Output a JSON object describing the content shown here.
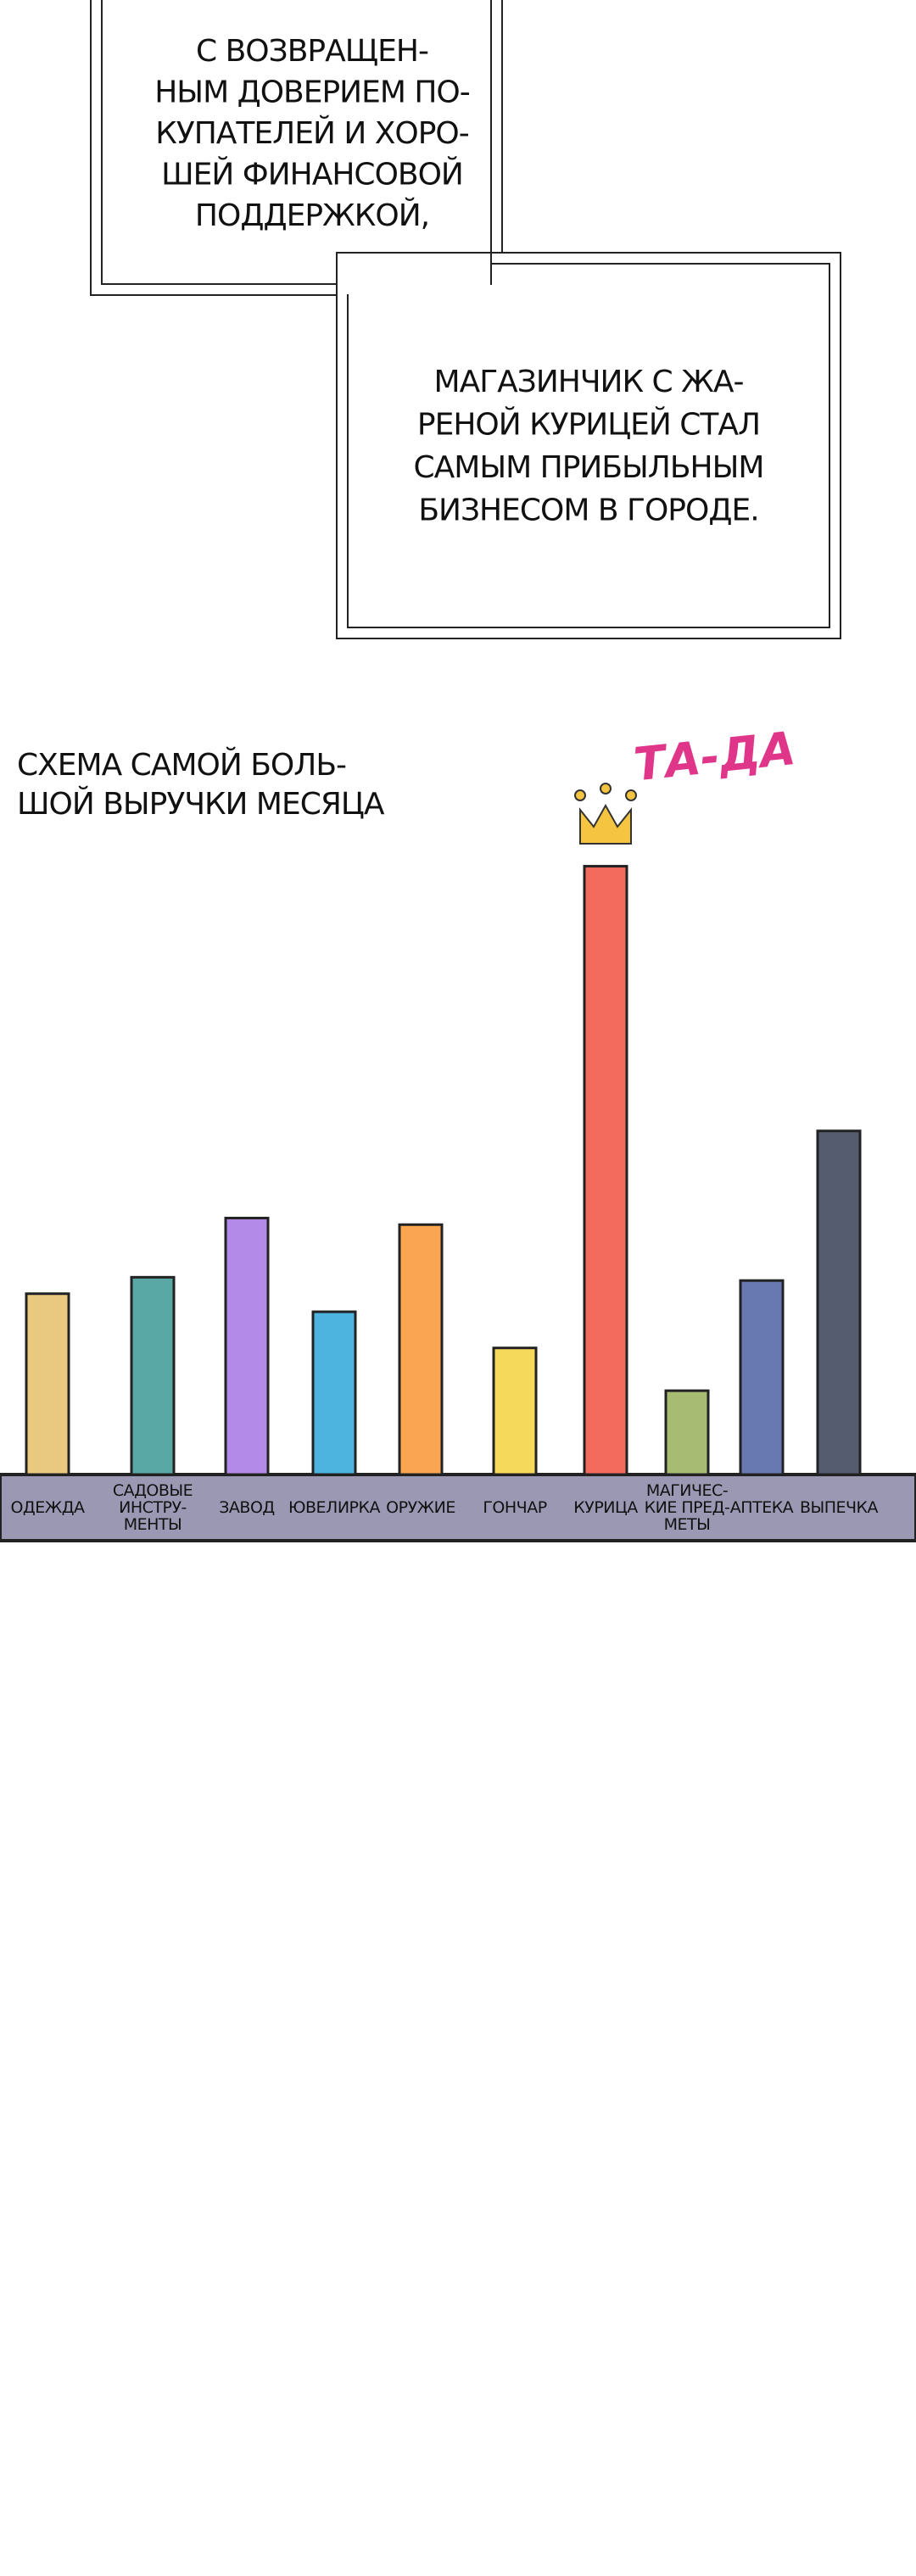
{
  "narration": {
    "box1": [
      "С ВОЗВРАЩЕН-",
      "НЫМ ДОВЕРИЕМ ПО-",
      "КУПАТЕЛЕЙ И ХОРО-",
      "ШЕЙ ФИНАНСОВОЙ",
      "ПОДДЕРЖКОЙ,"
    ],
    "box2": [
      "МАГАЗИНЧИК С ЖА-",
      "РЕНОЙ КУРИЦЕЙ СТАЛ",
      "САМЫМ ПРИБЫЛЬНЫМ",
      "БИЗНЕСОМ В ГОРОДЕ."
    ]
  },
  "sfx": "ТА-ДА",
  "chart_data": {
    "type": "bar",
    "title": [
      "СХЕМА САМОЙ БОЛЬ-",
      "ШОЙ ВЫРУЧКИ МЕСЯЦА"
    ],
    "categories": [
      "ОДЕЖДА",
      "САДОВЫЕ\nИНСТРУ-\nМЕНТЫ",
      "ЗАВОД",
      "ЮВЕЛИРКА",
      "ОРУЖИЕ",
      "ГОНЧАР",
      "КУРИЦА",
      "МАГИЧЕС-\nКИЕ ПРЕД-\nМЕТЫ",
      "АПТЕКА",
      "ВЫПЕЧКА"
    ],
    "values": [
      110,
      120,
      156,
      99,
      152,
      77,
      370,
      51,
      118,
      209
    ],
    "colors": [
      "#e8c97f",
      "#5aa8a6",
      "#b48ae8",
      "#4db4e0",
      "#f9a552",
      "#f5d95a",
      "#f26b5c",
      "#a8bb72",
      "#6878b0",
      "#565c70"
    ],
    "ylim": [
      0,
      380
    ]
  }
}
